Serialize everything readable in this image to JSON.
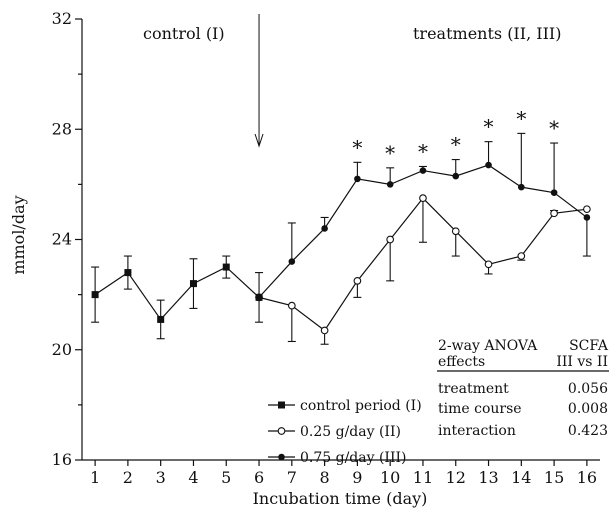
{
  "chart_data": {
    "type": "line",
    "xlabel": "Incubation time (day)",
    "ylabel": "mmol/day",
    "x": [
      1,
      2,
      3,
      4,
      5,
      6,
      7,
      8,
      9,
      10,
      11,
      12,
      13,
      14,
      15,
      16
    ],
    "xlim": [
      0.6,
      16.4
    ],
    "ylim": [
      16,
      32
    ],
    "yticks": [
      16,
      20,
      24,
      28,
      32
    ],
    "region_labels": [
      "control (I)",
      "treatments (II, III)"
    ],
    "arrow_at_x": 6,
    "series": [
      {
        "name": "control period (I)",
        "marker": "square",
        "x": [
          1,
          2,
          3,
          4,
          5,
          6
        ],
        "values": [
          22.0,
          22.8,
          21.1,
          22.4,
          23.0,
          21.9
        ],
        "err_up": [
          1.0,
          0.6,
          0.7,
          0.9,
          0.4,
          0.9
        ],
        "err_down": [
          1.0,
          0.6,
          0.7,
          0.9,
          0.4,
          0.9
        ]
      },
      {
        "name": "0.25 g/day (II)",
        "marker": "open-circle",
        "x": [
          6,
          7,
          8,
          9,
          10,
          11,
          12,
          13,
          14,
          15,
          16
        ],
        "values": [
          21.9,
          21.6,
          20.7,
          22.5,
          24.0,
          25.5,
          24.3,
          23.1,
          23.4,
          24.95,
          25.1
        ],
        "err_up": [
          0,
          0,
          0,
          0,
          0,
          0,
          0,
          0,
          0,
          0.1,
          0
        ],
        "err_down": [
          0,
          1.3,
          0.5,
          0.6,
          1.5,
          1.6,
          0.9,
          0.35,
          0.15,
          0,
          0
        ]
      },
      {
        "name": "0.75 g/day (III)",
        "marker": "filled-circle",
        "x": [
          6,
          7,
          8,
          9,
          10,
          11,
          12,
          13,
          14,
          15,
          16
        ],
        "values": [
          21.9,
          23.2,
          24.4,
          26.2,
          26.0,
          26.5,
          26.3,
          26.7,
          25.9,
          25.7,
          24.8
        ],
        "err_up": [
          0,
          1.4,
          0.4,
          0.6,
          0.6,
          0.15,
          0.6,
          0.85,
          1.95,
          1.8,
          0
        ],
        "err_down": [
          0,
          0,
          0,
          0,
          0,
          0,
          0,
          0,
          0,
          0,
          1.4
        ]
      }
    ],
    "significance_marker": "*",
    "significance_x": [
      9,
      10,
      11,
      12,
      13,
      14,
      15
    ],
    "legend_position": "bottom-center",
    "anova_table": {
      "header_left": [
        "2-way ANOVA",
        "effects"
      ],
      "header_right": [
        "SCFA",
        "III vs II"
      ],
      "rows": [
        {
          "label": "treatment",
          "value": "0.056"
        },
        {
          "label": "time course",
          "value": "0.008"
        },
        {
          "label": "interaction",
          "value": "0.423"
        }
      ]
    }
  }
}
